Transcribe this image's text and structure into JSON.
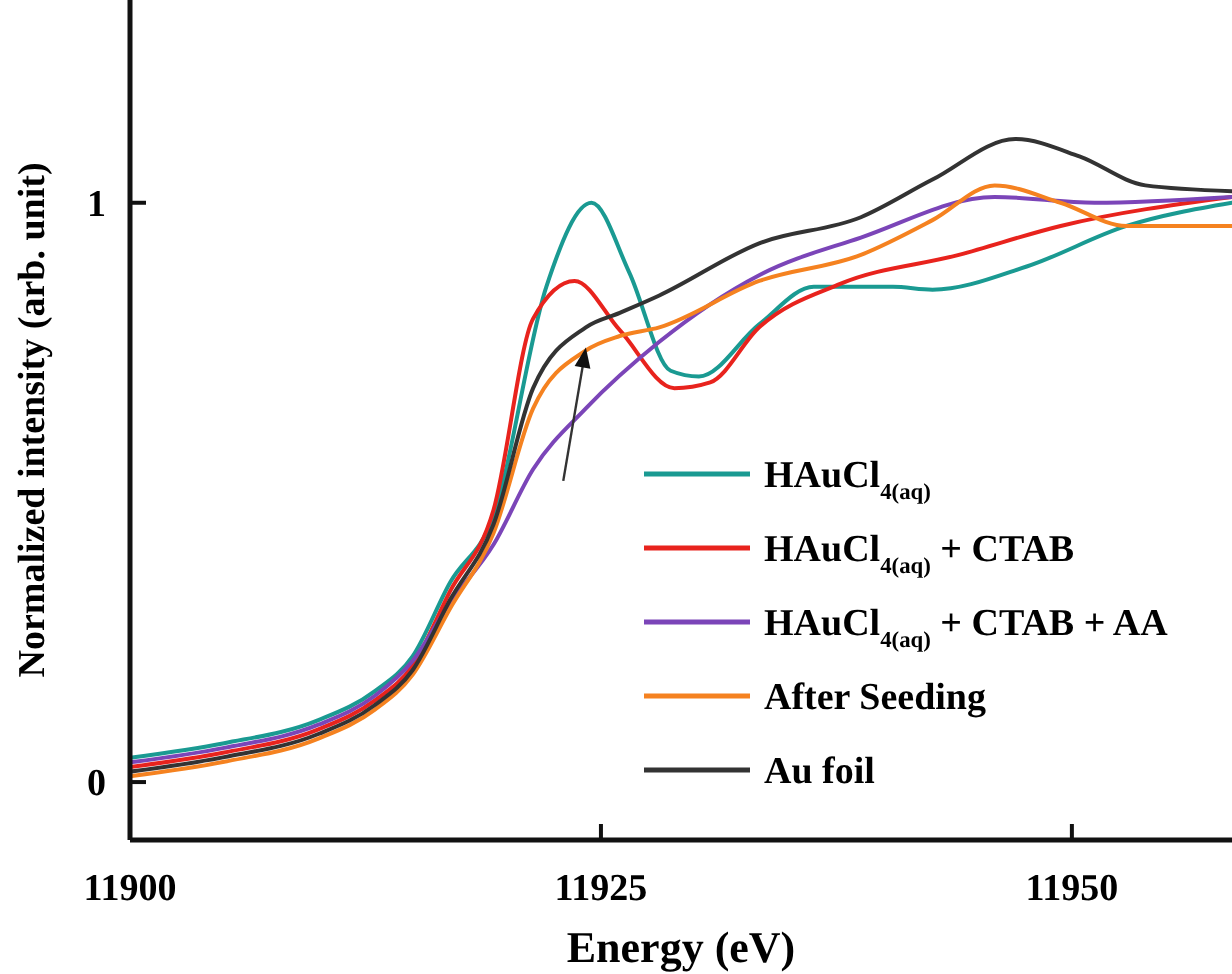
{
  "chart_data": {
    "type": "line",
    "xlabel": "Energy (eV)",
    "ylabel": "Normalized intensity (arb. unit)",
    "xlim": [
      11900,
      11958.5
    ],
    "ylim": [
      -0.1,
      1.35
    ],
    "xticks": [
      11900,
      11925,
      11950
    ],
    "yticks": [
      0,
      1
    ],
    "grid": false,
    "legend": "bottom right",
    "marker": "none",
    "line_style": "solid",
    "series": [
      {
        "name": "HAuCl$_{4(aq)}$",
        "color": "#1a9a92",
        "x": [
          11900,
          11905,
          11910,
          11913,
          11915,
          11917,
          11919.3,
          11922.1,
          11924.5,
          11926.5,
          11928.7,
          11930.2,
          11933.4,
          11936.3,
          11940.5,
          11942.6,
          11947.6,
          11952.9,
          11958.5
        ],
        "values": [
          0.042,
          0.067,
          0.107,
          0.157,
          0.217,
          0.345,
          0.46,
          0.855,
          1.0,
          0.88,
          0.71,
          0.7,
          0.79,
          0.855,
          0.855,
          0.85,
          0.89,
          0.96,
          1.0
        ]
      },
      {
        "name": "HAuCl$_{4(aq)}$ + CTAB",
        "color": "#e8231d",
        "x": [
          11900,
          11905,
          11910,
          11913,
          11915,
          11917,
          11919.3,
          11921.4,
          11923.6,
          11926,
          11928.9,
          11930.8,
          11933.4,
          11937.7,
          11944,
          11949.4,
          11958.5
        ],
        "values": [
          0.026,
          0.051,
          0.091,
          0.141,
          0.201,
          0.33,
          0.47,
          0.8,
          0.865,
          0.78,
          0.68,
          0.69,
          0.785,
          0.86,
          0.91,
          0.96,
          1.01
        ]
      },
      {
        "name": "HAuCl$_{4(aq)}$ + CTAB + AA",
        "color": "#7b45b8",
        "x": [
          11900,
          11905,
          11910,
          11913,
          11915,
          11917,
          11919.3,
          11921.4,
          11924.2,
          11928.1,
          11933.4,
          11938.8,
          11945.9,
          11951.2,
          11958.5
        ],
        "values": [
          0.034,
          0.059,
          0.099,
          0.149,
          0.209,
          0.31,
          0.41,
          0.54,
          0.645,
          0.76,
          0.875,
          0.94,
          1.01,
          1.0,
          1.01
        ]
      },
      {
        "name": "After Seeding",
        "color": "#f58220",
        "x": [
          11900,
          11905,
          11910,
          11913,
          11915,
          11917,
          11919.3,
          11921.4,
          11924.2,
          11926,
          11928.1,
          11933.4,
          11938.8,
          11942.6,
          11945.9,
          11949.4,
          11952.9,
          11958.5
        ],
        "values": [
          0.01,
          0.035,
          0.075,
          0.125,
          0.185,
          0.3,
          0.43,
          0.645,
          0.745,
          0.77,
          0.785,
          0.865,
          0.91,
          0.97,
          1.03,
          1.0,
          0.96,
          0.96
        ]
      },
      {
        "name": "Au foil",
        "color": "#333333",
        "x": [
          11900,
          11905,
          11910,
          11913,
          11915,
          11917,
          11919.3,
          11921.4,
          11924.2,
          11926,
          11928.1,
          11933.4,
          11938.8,
          11942.6,
          11947,
          11950.4,
          11953.9,
          11958.5
        ],
        "values": [
          0.018,
          0.043,
          0.083,
          0.133,
          0.193,
          0.315,
          0.445,
          0.68,
          0.785,
          0.81,
          0.84,
          0.93,
          0.975,
          1.04,
          1.11,
          1.08,
          1.03,
          1.02
        ]
      }
    ]
  }
}
